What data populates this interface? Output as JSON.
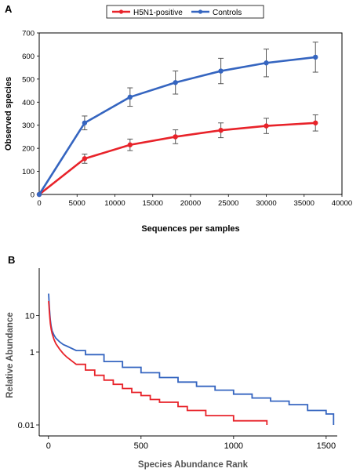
{
  "panels": {
    "a_label": "A",
    "b_label": "B"
  },
  "colors": {
    "h5n1": "#e8232a",
    "controls": "#3565c0",
    "frame": "#000000"
  },
  "chart_data": [
    {
      "type": "line",
      "panel": "A",
      "xlabel": "Sequences per samples",
      "ylabel": "Observed species",
      "xlim": [
        0,
        40000
      ],
      "ylim": [
        0,
        700
      ],
      "xticks": [
        "0",
        "5000",
        "10000",
        "15000",
        "20000",
        "25000",
        "30000",
        "35000",
        "40000"
      ],
      "yticks": [
        "0",
        "100",
        "200",
        "300",
        "400",
        "500",
        "600",
        "700"
      ],
      "grid": false,
      "legend": "top-center",
      "error_bars": true,
      "series": [
        {
          "name": "H5N1-positive",
          "x": [
            0,
            6000,
            12000,
            18000,
            24000,
            30000,
            36500
          ],
          "values": [
            0,
            155,
            215,
            250,
            278,
            297,
            310
          ],
          "errors": [
            0,
            20,
            25,
            30,
            32,
            33,
            35
          ]
        },
        {
          "name": "Controls",
          "x": [
            0,
            6000,
            12000,
            18000,
            24000,
            30000,
            36500
          ],
          "values": [
            0,
            310,
            422,
            485,
            535,
            570,
            595
          ],
          "errors": [
            0,
            30,
            40,
            50,
            55,
            60,
            65
          ]
        }
      ]
    },
    {
      "type": "line",
      "panel": "B",
      "xlabel": "Species Abundance Rank",
      "ylabel": "Relative Abundance",
      "xlim": [
        -50,
        1560
      ],
      "ylim": [
        0.005,
        200
      ],
      "yscale": "log",
      "xticks": [
        "0",
        "500",
        "1000",
        "1500"
      ],
      "yticks": [
        "0.01",
        "1",
        "10"
      ],
      "ytick_values": [
        0.01,
        1,
        10
      ],
      "grid": false,
      "series": [
        {
          "name": "H5N1-positive",
          "x": [
            1,
            3,
            5,
            8,
            10,
            15,
            20,
            30,
            40,
            60,
            80,
            100,
            150,
            200,
            250,
            300,
            350,
            400,
            450,
            500,
            550,
            600,
            700,
            750,
            850,
            1000,
            1180
          ],
          "values": [
            25,
            18,
            12,
            8,
            6,
            4.2,
            3.2,
            2.2,
            1.7,
            1.2,
            0.9,
            0.72,
            0.46,
            0.32,
            0.23,
            0.17,
            0.13,
            0.1,
            0.078,
            0.064,
            0.05,
            0.042,
            0.032,
            0.025,
            0.018,
            0.013,
            0.01
          ]
        },
        {
          "name": "Controls",
          "x": [
            1,
            3,
            5,
            8,
            10,
            15,
            20,
            30,
            40,
            60,
            80,
            100,
            150,
            200,
            300,
            400,
            500,
            600,
            700,
            800,
            900,
            1000,
            1100,
            1200,
            1300,
            1400,
            1500,
            1540
          ],
          "values": [
            40,
            25,
            16,
            10,
            7.5,
            5,
            3.8,
            2.9,
            2.4,
            1.9,
            1.6,
            1.45,
            1.1,
            0.85,
            0.55,
            0.38,
            0.27,
            0.2,
            0.15,
            0.115,
            0.09,
            0.07,
            0.055,
            0.045,
            0.036,
            0.025,
            0.02,
            0.01
          ]
        }
      ]
    }
  ]
}
